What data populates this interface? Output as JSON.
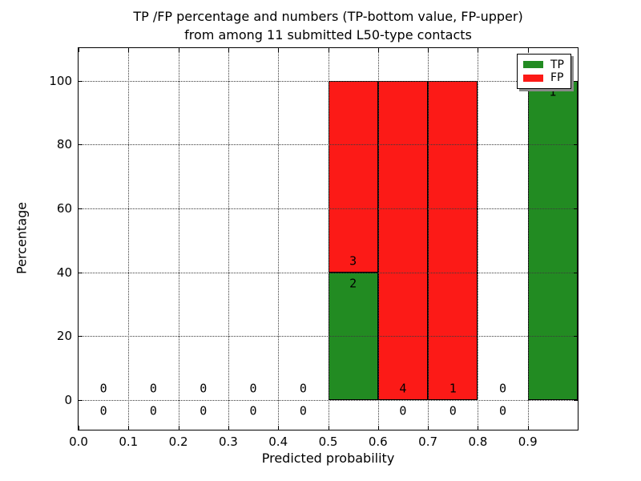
{
  "title": {
    "line1": "TP /FP percentage and numbers (TP-bottom value, FP-upper)",
    "line2": "from among 11 submitted L50-type contacts"
  },
  "axes": {
    "x_label": "Predicted probability",
    "y_label": "Percentage"
  },
  "chart_data": {
    "type": "bar",
    "stacked": true,
    "title": "TP /FP percentage and numbers (TP-bottom value, FP-upper) from among 11 submitted L50-type contacts",
    "xlabel": "Predicted probability",
    "ylabel": "Percentage",
    "xlim": [
      0.0,
      1.0
    ],
    "ylim": [
      -9.25,
      110.25
    ],
    "grid": true,
    "legend_position": "upper right",
    "x_ticks": [
      0.0,
      0.1,
      0.2,
      0.3,
      0.4,
      0.5,
      0.6,
      0.7,
      0.8,
      0.9
    ],
    "x_tick_labels": [
      "0.0",
      "0.1",
      "0.2",
      "0.3",
      "0.4",
      "0.5",
      "0.6",
      "0.7",
      "0.8",
      "0.9"
    ],
    "y_ticks": [
      0,
      20,
      40,
      60,
      80,
      100
    ],
    "y_tick_labels": [
      "0",
      "20",
      "40",
      "60",
      "80",
      "100"
    ],
    "bin_width": 0.1,
    "series": [
      {
        "name": "TP",
        "color": "#228b22"
      },
      {
        "name": "FP",
        "color": "#fc1a17"
      }
    ],
    "bins": [
      {
        "x0": 0.0,
        "tp_count": 0,
        "fp_count": 0,
        "tp_pct": 0,
        "fp_pct": 0
      },
      {
        "x0": 0.1,
        "tp_count": 0,
        "fp_count": 0,
        "tp_pct": 0,
        "fp_pct": 0
      },
      {
        "x0": 0.2,
        "tp_count": 0,
        "fp_count": 0,
        "tp_pct": 0,
        "fp_pct": 0
      },
      {
        "x0": 0.3,
        "tp_count": 0,
        "fp_count": 0,
        "tp_pct": 0,
        "fp_pct": 0
      },
      {
        "x0": 0.4,
        "tp_count": 0,
        "fp_count": 0,
        "tp_pct": 0,
        "fp_pct": 0
      },
      {
        "x0": 0.5,
        "tp_count": 2,
        "fp_count": 3,
        "tp_pct": 40,
        "fp_pct": 60
      },
      {
        "x0": 0.6,
        "tp_count": 0,
        "fp_count": 4,
        "tp_pct": 0,
        "fp_pct": 100
      },
      {
        "x0": 0.7,
        "tp_count": 0,
        "fp_count": 1,
        "tp_pct": 0,
        "fp_pct": 100
      },
      {
        "x0": 0.8,
        "tp_count": 0,
        "fp_count": 0,
        "tp_pct": 0,
        "fp_pct": 0
      },
      {
        "x0": 0.9,
        "tp_count": 1,
        "fp_count": 0,
        "tp_pct": 100,
        "fp_pct": 0
      }
    ],
    "label_offset_pct": 3.5
  }
}
